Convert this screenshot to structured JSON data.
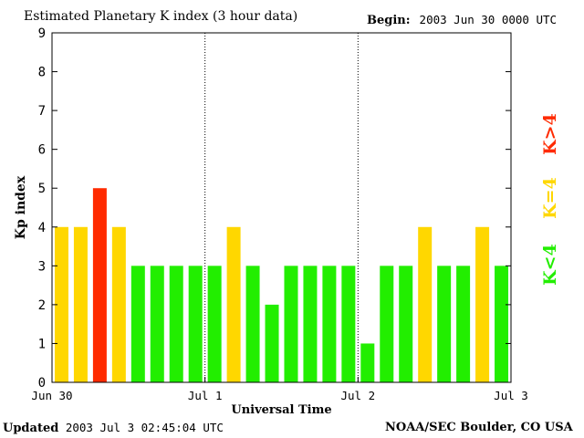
{
  "header": {
    "title": "Estimated Planetary K index (3 hour data)",
    "begin_label": "Begin:",
    "begin_value": "2003 Jun 30 0000 UTC"
  },
  "footer": {
    "updated_label": "Updated",
    "updated_value": "2003 Jul  3 02:45:04 UTC",
    "source": "NOAA/SEC Boulder, CO USA"
  },
  "legend": [
    {
      "label": "K>4",
      "color": "#ff2a00"
    },
    {
      "label": "K=4",
      "color": "#ffd700"
    },
    {
      "label": "K<4",
      "color": "#22ee00"
    }
  ],
  "chart_data": {
    "type": "bar",
    "ylabel": "Kp index",
    "xlabel": "Universal Time",
    "ylim": [
      0,
      9
    ],
    "y_ticks": [
      "0",
      "1",
      "2",
      "3",
      "4",
      "5",
      "6",
      "7",
      "8",
      "9"
    ],
    "x_tick_labels": [
      "Jun 30",
      "Jul 1",
      "Jul 2",
      "Jul 3"
    ],
    "values": [
      4,
      4,
      5,
      4,
      3,
      3,
      3,
      3,
      3,
      4,
      3,
      2,
      3,
      3,
      3,
      3,
      1,
      3,
      3,
      4,
      3,
      3,
      4,
      3
    ],
    "colors": {
      "low": "#22ee00",
      "equal": "#ffd700",
      "high": "#ff2a00"
    }
  }
}
